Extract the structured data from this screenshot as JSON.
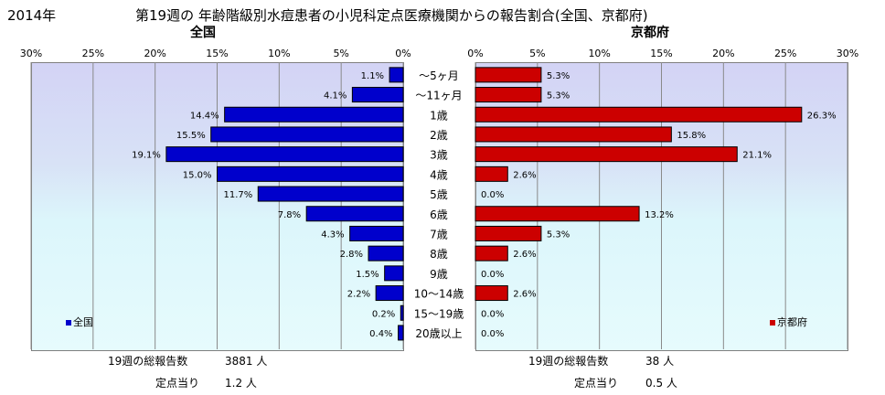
{
  "header": {
    "year": "2014年",
    "title": "第19週の 年齢階級別水痘患者の小児科定点医療機関からの報告割合(全国、京都府)"
  },
  "panels": {
    "left_title": "全国",
    "right_title": "京都府",
    "left_legend": "全国",
    "right_legend": "京都府"
  },
  "footer": {
    "left_total_label": "19週の総報告数",
    "left_total_value": "3881 人",
    "left_per_label": "定点当り",
    "left_per_value": "1.2 人",
    "right_total_label": "19週の総報告数",
    "right_total_value": "38 人",
    "right_per_label": "定点当り",
    "right_per_value": "0.5 人"
  },
  "colors": {
    "national": "#0000cc",
    "kyoto": "#cc0000"
  },
  "chart_data": [
    {
      "type": "bar",
      "orientation": "horizontal",
      "title": "全国",
      "x_axis": "reversed",
      "xlim": [
        0,
        30
      ],
      "ticks": [
        "30%",
        "25%",
        "20%",
        "15%",
        "10%",
        "5%",
        "0%"
      ],
      "categories": [
        "～5ヶ月",
        "～11ヶ月",
        "1歳",
        "2歳",
        "3歳",
        "4歳",
        "5歳",
        "6歳",
        "7歳",
        "8歳",
        "9歳",
        "10～14歳",
        "15～19歳",
        "20歳以上"
      ],
      "series": [
        {
          "name": "全国",
          "values": [
            1.1,
            4.1,
            14.4,
            15.5,
            19.1,
            15.0,
            11.7,
            7.8,
            4.3,
            2.8,
            1.5,
            2.2,
            0.2,
            0.4
          ],
          "labels": [
            "1.1%",
            "4.1%",
            "14.4%",
            "15.5%",
            "19.1%",
            "15.0%",
            "11.7%",
            "7.8%",
            "4.3%",
            "2.8%",
            "1.5%",
            "2.2%",
            "0.2%",
            "0.4%"
          ]
        }
      ],
      "grid": true,
      "legend": "bottom-left"
    },
    {
      "type": "bar",
      "orientation": "horizontal",
      "title": "京都府",
      "xlim": [
        0,
        30
      ],
      "ticks": [
        "0%",
        "5%",
        "10%",
        "15%",
        "20%",
        "25%",
        "30%"
      ],
      "categories": [
        "～5ヶ月",
        "～11ヶ月",
        "1歳",
        "2歳",
        "3歳",
        "4歳",
        "5歳",
        "6歳",
        "7歳",
        "8歳",
        "9歳",
        "10～14歳",
        "15～19歳",
        "20歳以上"
      ],
      "series": [
        {
          "name": "京都府",
          "values": [
            5.3,
            5.3,
            26.3,
            15.8,
            21.1,
            2.6,
            0.0,
            13.2,
            5.3,
            2.6,
            0.0,
            2.6,
            0.0,
            0.0
          ],
          "labels": [
            "5.3%",
            "5.3%",
            "26.3%",
            "15.8%",
            "21.1%",
            "2.6%",
            "0.0%",
            "13.2%",
            "5.3%",
            "2.6%",
            "0.0%",
            "2.6%",
            "0.0%",
            "0.0%"
          ]
        }
      ],
      "grid": true,
      "legend": "bottom-right"
    }
  ]
}
